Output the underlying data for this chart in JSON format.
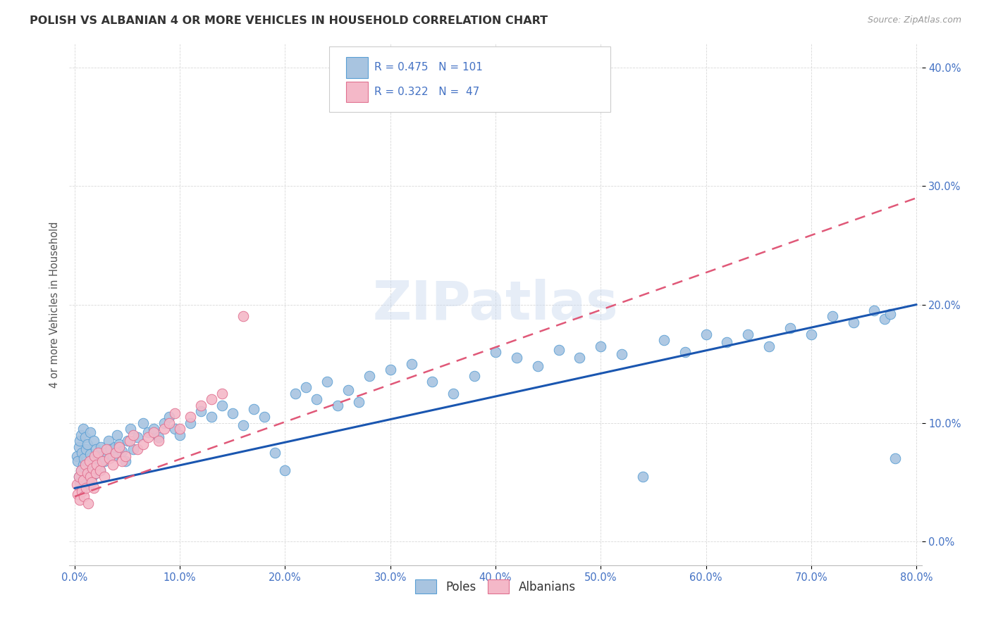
{
  "title": "POLISH VS ALBANIAN 4 OR MORE VEHICLES IN HOUSEHOLD CORRELATION CHART",
  "source": "Source: ZipAtlas.com",
  "ylabel": "4 or more Vehicles in Household",
  "watermark": "ZIPatlas",
  "poles_color": "#a8c4e0",
  "poles_edge_color": "#5a9fd4",
  "albanians_color": "#f4b8c8",
  "albanians_edge_color": "#e07090",
  "line_poles_color": "#1a56b0",
  "line_albanians_color": "#e05878",
  "R_poles": 0.475,
  "N_poles": 101,
  "R_albanians": 0.322,
  "N_albanians": 47,
  "poles_x": [
    0.002,
    0.003,
    0.004,
    0.004,
    0.005,
    0.005,
    0.006,
    0.006,
    0.007,
    0.007,
    0.008,
    0.008,
    0.009,
    0.009,
    0.01,
    0.01,
    0.011,
    0.011,
    0.012,
    0.012,
    0.013,
    0.014,
    0.015,
    0.015,
    0.016,
    0.017,
    0.018,
    0.019,
    0.02,
    0.021,
    0.022,
    0.024,
    0.025,
    0.026,
    0.028,
    0.03,
    0.032,
    0.034,
    0.036,
    0.038,
    0.04,
    0.042,
    0.045,
    0.048,
    0.05,
    0.053,
    0.056,
    0.06,
    0.065,
    0.07,
    0.075,
    0.08,
    0.085,
    0.09,
    0.095,
    0.1,
    0.11,
    0.12,
    0.13,
    0.14,
    0.15,
    0.16,
    0.17,
    0.18,
    0.19,
    0.2,
    0.21,
    0.22,
    0.23,
    0.24,
    0.25,
    0.26,
    0.27,
    0.28,
    0.3,
    0.32,
    0.34,
    0.36,
    0.38,
    0.4,
    0.42,
    0.44,
    0.46,
    0.48,
    0.5,
    0.52,
    0.54,
    0.56,
    0.58,
    0.6,
    0.62,
    0.64,
    0.66,
    0.68,
    0.7,
    0.72,
    0.74,
    0.76,
    0.77,
    0.775,
    0.78
  ],
  "poles_y": [
    0.072,
    0.068,
    0.055,
    0.08,
    0.05,
    0.085,
    0.06,
    0.09,
    0.045,
    0.075,
    0.065,
    0.095,
    0.058,
    0.07,
    0.062,
    0.088,
    0.052,
    0.078,
    0.056,
    0.082,
    0.066,
    0.048,
    0.074,
    0.092,
    0.054,
    0.069,
    0.085,
    0.057,
    0.078,
    0.065,
    0.07,
    0.06,
    0.08,
    0.072,
    0.068,
    0.075,
    0.085,
    0.078,
    0.072,
    0.08,
    0.09,
    0.082,
    0.076,
    0.068,
    0.085,
    0.095,
    0.078,
    0.088,
    0.1,
    0.092,
    0.095,
    0.088,
    0.1,
    0.105,
    0.095,
    0.09,
    0.1,
    0.11,
    0.105,
    0.115,
    0.108,
    0.098,
    0.112,
    0.105,
    0.075,
    0.06,
    0.125,
    0.13,
    0.12,
    0.135,
    0.115,
    0.128,
    0.118,
    0.14,
    0.145,
    0.15,
    0.135,
    0.125,
    0.14,
    0.16,
    0.155,
    0.148,
    0.162,
    0.155,
    0.165,
    0.158,
    0.055,
    0.17,
    0.16,
    0.175,
    0.168,
    0.175,
    0.165,
    0.18,
    0.175,
    0.19,
    0.185,
    0.195,
    0.188,
    0.192,
    0.07
  ],
  "albanians_x": [
    0.002,
    0.003,
    0.004,
    0.005,
    0.006,
    0.007,
    0.008,
    0.009,
    0.01,
    0.011,
    0.012,
    0.013,
    0.014,
    0.015,
    0.016,
    0.017,
    0.018,
    0.019,
    0.02,
    0.021,
    0.022,
    0.024,
    0.026,
    0.028,
    0.03,
    0.033,
    0.036,
    0.039,
    0.042,
    0.045,
    0.048,
    0.052,
    0.056,
    0.06,
    0.065,
    0.07,
    0.075,
    0.08,
    0.085,
    0.09,
    0.095,
    0.1,
    0.11,
    0.12,
    0.13,
    0.14,
    0.16
  ],
  "albanians_y": [
    0.048,
    0.04,
    0.055,
    0.035,
    0.06,
    0.042,
    0.052,
    0.038,
    0.065,
    0.045,
    0.058,
    0.032,
    0.068,
    0.055,
    0.05,
    0.062,
    0.045,
    0.072,
    0.058,
    0.065,
    0.075,
    0.06,
    0.068,
    0.055,
    0.078,
    0.07,
    0.065,
    0.075,
    0.08,
    0.068,
    0.072,
    0.085,
    0.09,
    0.078,
    0.082,
    0.088,
    0.092,
    0.085,
    0.095,
    0.1,
    0.108,
    0.095,
    0.105,
    0.115,
    0.12,
    0.125,
    0.19
  ],
  "poles_line_x": [
    0.0,
    0.8
  ],
  "poles_line_y": [
    0.045,
    0.2
  ],
  "albanians_line_x": [
    0.0,
    0.8
  ],
  "albanians_line_y": [
    0.038,
    0.29
  ],
  "xlim": [
    -0.005,
    0.805
  ],
  "ylim": [
    -0.02,
    0.42
  ],
  "xticks": [
    0.0,
    0.1,
    0.2,
    0.3,
    0.4,
    0.5,
    0.6,
    0.7,
    0.8
  ],
  "yticks": [
    0.0,
    0.1,
    0.2,
    0.3,
    0.4
  ],
  "background_color": "#ffffff",
  "grid_color": "#d8d8d8",
  "tick_color": "#4472c4",
  "title_color": "#333333",
  "ylabel_color": "#555555",
  "source_color": "#999999"
}
